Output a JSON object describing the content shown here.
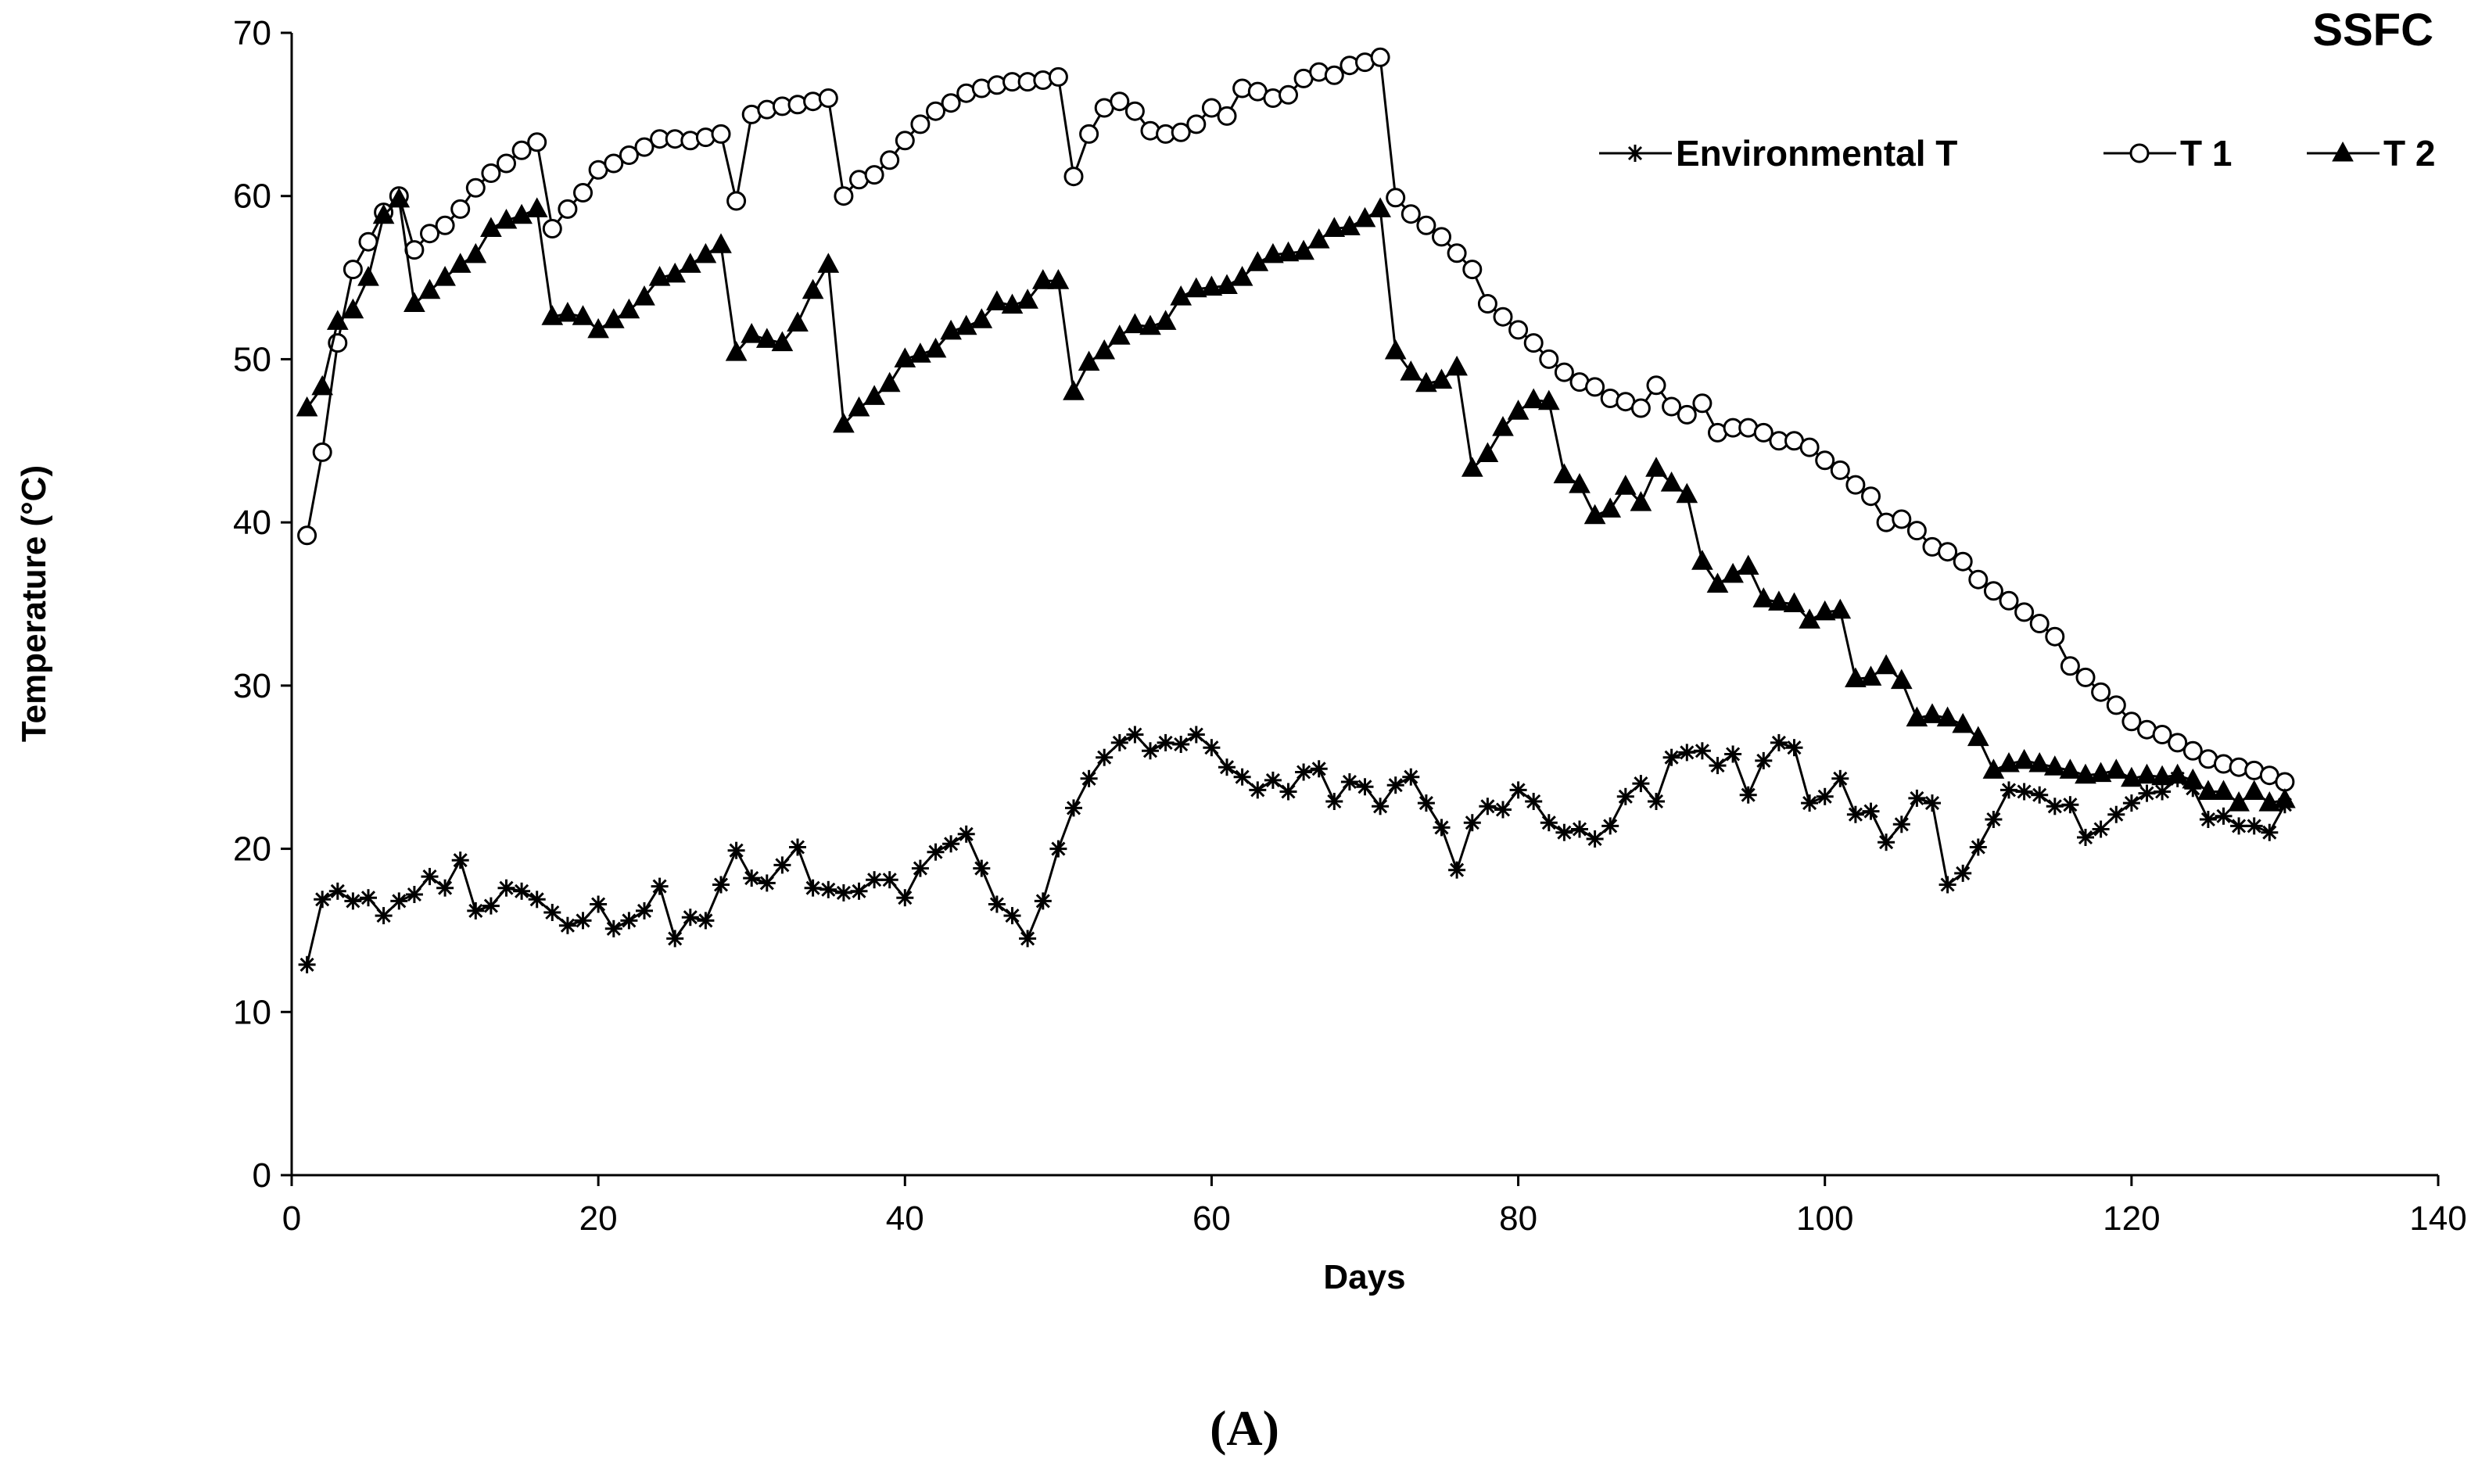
{
  "chart_data": {
    "type": "line",
    "title": "SSFC",
    "xlabel": "Days",
    "ylabel": "Temperature (°C)",
    "xlim": [
      0,
      140
    ],
    "ylim": [
      0,
      70
    ],
    "xticks": [
      0,
      20,
      40,
      60,
      80,
      100,
      120,
      140
    ],
    "yticks": [
      0,
      10,
      20,
      30,
      40,
      50,
      60,
      70
    ],
    "grid": false,
    "legend_position": "top-right",
    "series": [
      {
        "name": "Environmental T",
        "marker": "asterisk",
        "x": [
          1,
          2,
          3,
          4,
          5,
          6,
          7,
          8,
          9,
          10,
          11,
          12,
          13,
          14,
          15,
          16,
          17,
          18,
          19,
          20,
          21,
          22,
          23,
          24,
          25,
          26,
          27,
          28,
          29,
          30,
          31,
          32,
          33,
          34,
          35,
          36,
          37,
          38,
          39,
          40,
          41,
          42,
          43,
          44,
          45,
          46,
          47,
          48,
          49,
          50,
          51,
          52,
          53,
          54,
          55,
          56,
          57,
          58,
          59,
          60,
          61,
          62,
          63,
          64,
          65,
          66,
          67,
          68,
          69,
          70,
          71,
          72,
          73,
          74,
          75,
          76,
          77,
          78,
          79,
          80,
          81,
          82,
          83,
          84,
          85,
          86,
          87,
          88,
          89,
          90,
          91,
          92,
          93,
          94,
          95,
          96,
          97,
          98,
          99,
          100,
          101,
          102,
          103,
          104,
          105,
          106,
          107,
          108,
          109,
          110,
          111,
          112,
          113,
          114,
          115,
          116,
          117,
          118,
          119,
          120,
          121,
          122,
          123,
          124,
          125,
          126,
          127,
          128,
          129,
          130
        ],
        "values": [
          12.9,
          16.9,
          17.4,
          16.8,
          17.0,
          15.9,
          16.8,
          17.2,
          18.3,
          17.6,
          19.3,
          16.2,
          16.5,
          17.6,
          17.4,
          16.9,
          16.1,
          15.3,
          15.6,
          16.6,
          15.1,
          15.6,
          16.2,
          17.7,
          14.5,
          15.8,
          15.6,
          17.8,
          19.9,
          18.2,
          17.9,
          19.0,
          20.1,
          17.6,
          17.5,
          17.3,
          17.4,
          18.1,
          18.1,
          17.0,
          18.8,
          19.8,
          20.3,
          20.9,
          18.8,
          16.6,
          15.9,
          14.5,
          16.8,
          20.0,
          22.5,
          24.3,
          25.6,
          26.5,
          27.0,
          26.0,
          26.5,
          26.4,
          27.0,
          26.2,
          25.0,
          24.4,
          23.6,
          24.2,
          23.5,
          24.7,
          24.9,
          22.9,
          24.1,
          23.8,
          22.6,
          23.9,
          24.4,
          22.8,
          21.3,
          18.7,
          21.6,
          22.6,
          22.4,
          23.6,
          22.9,
          21.6,
          21.0,
          21.2,
          20.6,
          21.4,
          23.2,
          24.0,
          22.9,
          25.6,
          25.9,
          26.0,
          25.1,
          25.8,
          23.3,
          25.4,
          26.5,
          26.2,
          22.8,
          23.2,
          24.3,
          22.1,
          22.3,
          20.4,
          21.5,
          23.1,
          22.8,
          17.8,
          18.5,
          20.1,
          21.8,
          23.6,
          23.5,
          23.3,
          22.6,
          22.7,
          20.7,
          21.2,
          22.1,
          22.8,
          23.4,
          23.5,
          24.3,
          23.7,
          21.8,
          22.0,
          21.4,
          21.4,
          21.0,
          22.7
        ]
      },
      {
        "name": "T 1",
        "marker": "open-circle",
        "x": [
          1,
          2,
          3,
          4,
          5,
          6,
          7,
          8,
          9,
          10,
          11,
          12,
          13,
          14,
          15,
          16,
          17,
          18,
          19,
          20,
          21,
          22,
          23,
          24,
          25,
          26,
          27,
          28,
          29,
          30,
          31,
          32,
          33,
          34,
          35,
          36,
          37,
          38,
          39,
          40,
          41,
          42,
          43,
          44,
          45,
          46,
          47,
          48,
          49,
          50,
          51,
          52,
          53,
          54,
          55,
          56,
          57,
          58,
          59,
          60,
          61,
          62,
          63,
          64,
          65,
          66,
          67,
          68,
          69,
          70,
          71,
          72,
          73,
          74,
          75,
          76,
          77,
          78,
          79,
          80,
          81,
          82,
          83,
          84,
          85,
          86,
          87,
          88,
          89,
          90,
          91,
          92,
          93,
          94,
          95,
          96,
          97,
          98,
          99,
          100,
          101,
          102,
          103,
          104,
          105,
          106,
          107,
          108,
          109,
          110,
          111,
          112,
          113,
          114,
          115,
          116,
          117,
          118,
          119,
          120,
          121,
          122,
          123,
          124,
          125,
          126,
          127,
          128,
          129,
          130
        ],
        "values": [
          39.2,
          44.3,
          51.0,
          55.5,
          57.2,
          59.0,
          60.0,
          56.7,
          57.7,
          58.2,
          59.2,
          60.5,
          61.4,
          62.0,
          62.8,
          63.3,
          58.0,
          59.2,
          60.2,
          61.6,
          62.0,
          62.5,
          63.0,
          63.5,
          63.5,
          63.4,
          63.6,
          63.8,
          59.7,
          65.0,
          65.3,
          65.5,
          65.6,
          65.8,
          66.0,
          60.0,
          61.0,
          61.3,
          62.2,
          63.4,
          64.4,
          65.2,
          65.7,
          66.3,
          66.6,
          66.8,
          67.0,
          67.0,
          67.1,
          67.3,
          61.2,
          63.8,
          65.4,
          65.8,
          65.2,
          64.0,
          63.8,
          63.9,
          64.4,
          65.4,
          64.9,
          66.6,
          66.4,
          66.0,
          66.2,
          67.2,
          67.6,
          67.4,
          68.0,
          68.2,
          68.5,
          59.9,
          58.9,
          58.2,
          57.5,
          56.5,
          55.5,
          53.4,
          52.6,
          51.8,
          51.0,
          50.0,
          49.2,
          48.6,
          48.3,
          47.6,
          47.4,
          47.0,
          48.4,
          47.1,
          46.6,
          47.3,
          45.5,
          45.8,
          45.8,
          45.5,
          45.0,
          45.0,
          44.6,
          43.8,
          43.2,
          42.3,
          41.6,
          40.0,
          40.2,
          39.5,
          38.5,
          38.2,
          37.6,
          36.5,
          35.8,
          35.2,
          34.5,
          33.8,
          33.0,
          31.2,
          30.5,
          29.6,
          28.8,
          27.8,
          27.3,
          27.0,
          26.5,
          26.0,
          25.5,
          25.2,
          25.0,
          24.8,
          24.5,
          24.1
        ]
      },
      {
        "name": "T 2",
        "marker": "filled-triangle",
        "x": [
          1,
          2,
          3,
          4,
          5,
          6,
          7,
          8,
          9,
          10,
          11,
          12,
          13,
          14,
          15,
          16,
          17,
          18,
          19,
          20,
          21,
          22,
          23,
          24,
          25,
          26,
          27,
          28,
          29,
          30,
          31,
          32,
          33,
          34,
          35,
          36,
          37,
          38,
          39,
          40,
          41,
          42,
          43,
          44,
          45,
          46,
          47,
          48,
          49,
          50,
          51,
          52,
          53,
          54,
          55,
          56,
          57,
          58,
          59,
          60,
          61,
          62,
          63,
          64,
          65,
          66,
          67,
          68,
          69,
          70,
          71,
          72,
          73,
          74,
          75,
          76,
          77,
          78,
          79,
          80,
          81,
          82,
          83,
          84,
          85,
          86,
          87,
          88,
          89,
          90,
          91,
          92,
          93,
          94,
          95,
          96,
          97,
          98,
          99,
          100,
          101,
          102,
          103,
          104,
          105,
          106,
          107,
          108,
          109,
          110,
          111,
          112,
          113,
          114,
          115,
          116,
          117,
          118,
          119,
          120,
          121,
          122,
          123,
          124,
          125,
          126,
          127,
          128,
          129,
          130
        ],
        "values": [
          47.0,
          48.3,
          52.3,
          53.0,
          55.0,
          58.8,
          59.8,
          53.4,
          54.2,
          55.0,
          55.8,
          56.4,
          58.0,
          58.5,
          58.8,
          59.2,
          52.6,
          52.8,
          52.6,
          51.8,
          52.4,
          53.0,
          53.8,
          55.0,
          55.2,
          55.8,
          56.4,
          57.0,
          50.4,
          51.5,
          51.2,
          51.0,
          52.2,
          54.2,
          55.8,
          46.0,
          47.0,
          47.7,
          48.5,
          50.0,
          50.3,
          50.6,
          51.7,
          52.0,
          52.4,
          53.5,
          53.3,
          53.6,
          54.8,
          54.8,
          48.0,
          49.8,
          50.5,
          51.4,
          52.1,
          52.0,
          52.3,
          53.8,
          54.3,
          54.4,
          54.5,
          55.0,
          55.9,
          56.4,
          56.5,
          56.6,
          57.3,
          58.0,
          58.1,
          58.6,
          59.2,
          50.5,
          49.2,
          48.5,
          48.7,
          49.5,
          43.3,
          44.2,
          45.8,
          46.8,
          47.5,
          47.4,
          42.9,
          42.3,
          40.4,
          40.8,
          42.2,
          41.2,
          43.3,
          42.4,
          41.7,
          37.6,
          36.2,
          36.8,
          37.3,
          35.3,
          35.1,
          35.0,
          34.0,
          34.5,
          34.6,
          30.4,
          30.5,
          31.2,
          30.3,
          28.0,
          28.2,
          28.0,
          27.6,
          26.8,
          24.8,
          25.2,
          25.4,
          25.2,
          25.0,
          24.8,
          24.5,
          24.6,
          24.8,
          24.3,
          24.5,
          24.4,
          24.5,
          24.2,
          23.5,
          23.5,
          22.8,
          23.5,
          22.8,
          23.0
        ]
      }
    ]
  },
  "panel_label": "(A)"
}
